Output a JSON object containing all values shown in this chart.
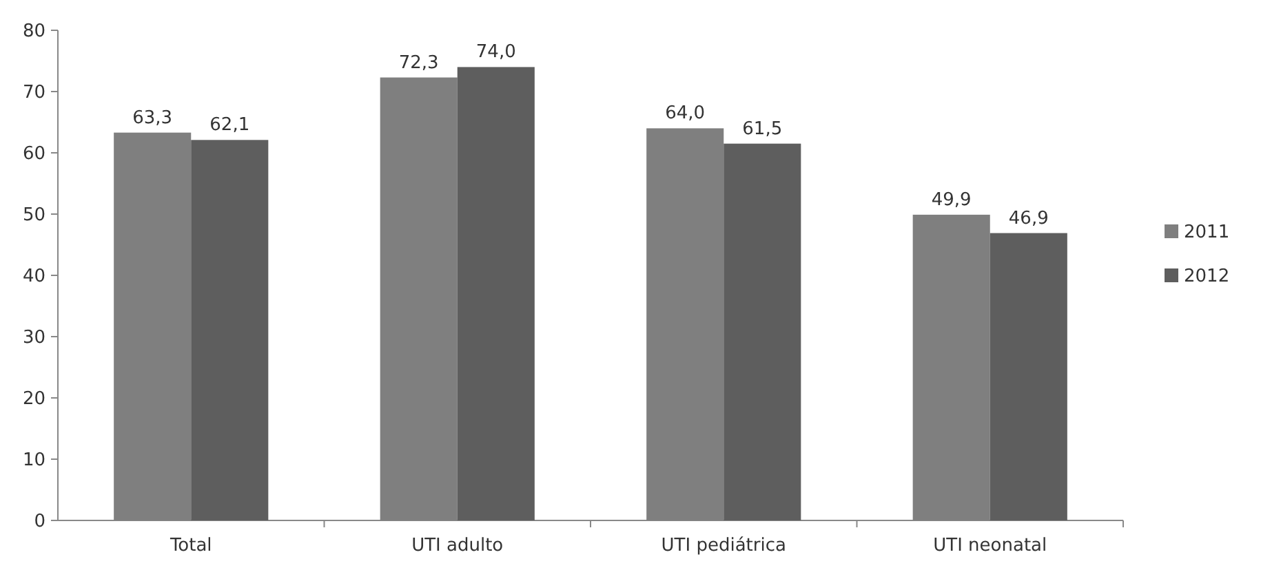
{
  "chart_data": {
    "type": "bar",
    "categories": [
      "Total",
      "UTI adulto",
      "UTI pediátrica",
      "UTI neonatal"
    ],
    "series": [
      {
        "name": "2011",
        "color": "#7f7f7f",
        "values": [
          63.3,
          72.3,
          64.0,
          49.9
        ],
        "value_labels": [
          "63,3",
          "72,3",
          "64,0",
          "49,9"
        ]
      },
      {
        "name": "2012",
        "color": "#5e5e5e",
        "values": [
          62.1,
          74.0,
          61.5,
          46.9
        ],
        "value_labels": [
          "62,1",
          "74,0",
          "61,5",
          "46,9"
        ]
      }
    ],
    "ylim": [
      0,
      80
    ],
    "yticks": [
      0,
      10,
      20,
      30,
      40,
      50,
      60,
      70,
      80
    ],
    "legend": "right"
  }
}
